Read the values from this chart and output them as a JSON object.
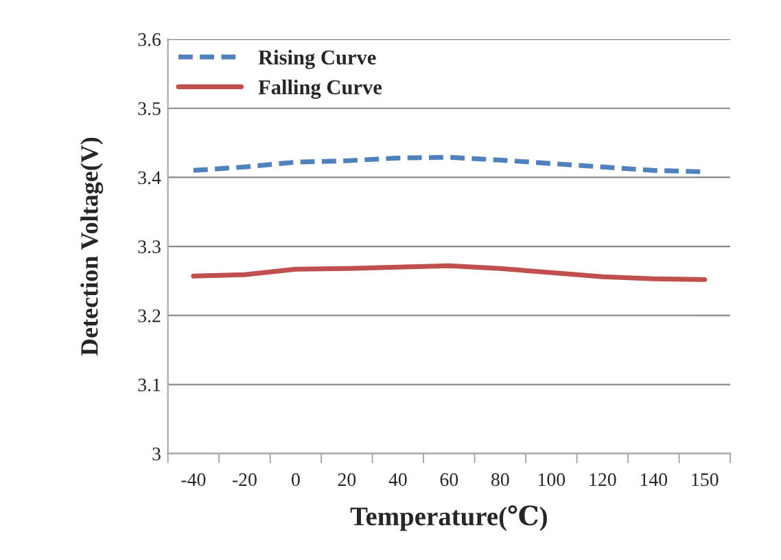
{
  "chart_data": {
    "type": "line",
    "xlabel": "Temperature(℃)",
    "ylabel": "Detection Voltage(V)",
    "categories": [
      "-40",
      "-20",
      "0",
      "20",
      "40",
      "60",
      "80",
      "100",
      "120",
      "140",
      "150"
    ],
    "series": [
      {
        "name": "Rising Curve",
        "color": "#4f81bd",
        "line_style": "dashed",
        "values": [
          3.41,
          3.415,
          3.422,
          3.424,
          3.428,
          3.429,
          3.425,
          3.42,
          3.415,
          3.41,
          3.408
        ]
      },
      {
        "name": "Falling Curve",
        "color": "#c0504d",
        "line_style": "solid",
        "values": [
          3.257,
          3.259,
          3.267,
          3.268,
          3.27,
          3.272,
          3.268,
          3.262,
          3.256,
          3.253,
          3.252
        ]
      }
    ],
    "ylim": [
      3,
      3.6
    ],
    "yticks": [
      {
        "value": 3,
        "label": "3"
      },
      3.1,
      3.2,
      3.3,
      3.4,
      3.5,
      3.6
    ],
    "grid": "y",
    "legend": "top left",
    "marker": "none"
  }
}
